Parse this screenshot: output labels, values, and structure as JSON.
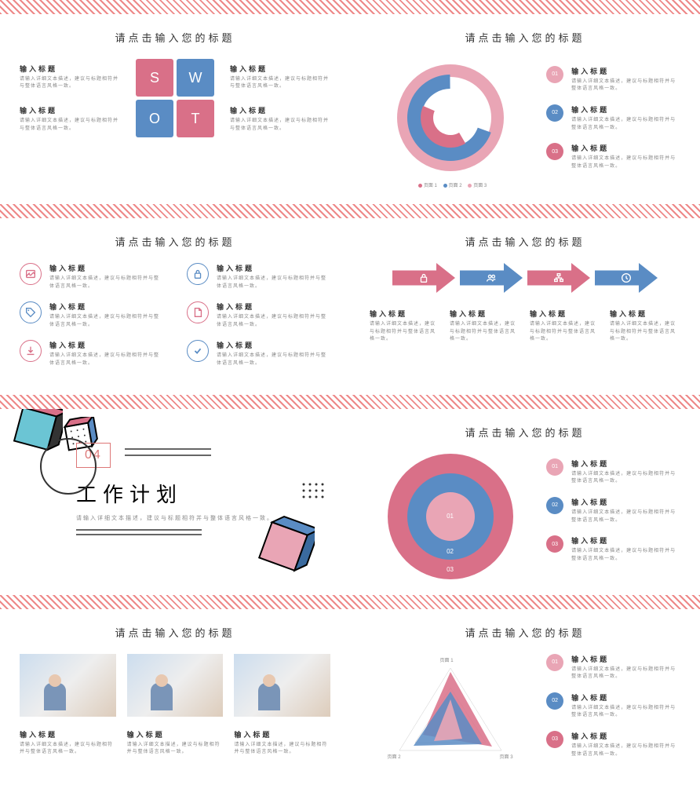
{
  "colors": {
    "pink": "#d97088",
    "blue": "#5a8cc4",
    "lightpink": "#e9a5b5",
    "lightblue": "#8fb3d9",
    "darkpink": "#c45a75"
  },
  "common": {
    "slideTitle": "请点击输入您的标题",
    "subTitle": "输入标题",
    "subDesc": "请输入详细文本描述，建议与标题相符并与整体语言风格一致。",
    "subDescShort": "请输入详细文本描述，建议与标题相符并与整体语言风格一致。"
  },
  "swot": {
    "cells": [
      {
        "letter": "S",
        "color": "#d97088"
      },
      {
        "letter": "W",
        "color": "#5a8cc4"
      },
      {
        "letter": "O",
        "color": "#5a8cc4"
      },
      {
        "letter": "T",
        "color": "#d97088"
      }
    ]
  },
  "donut": {
    "legend": [
      "页面 1",
      "页面 2",
      "页面 3"
    ],
    "rings": [
      {
        "color": "#e9a5b5",
        "start": 0,
        "end": 360,
        "r": 68,
        "w": 16
      },
      {
        "color": "#5a8cc4",
        "start": 140,
        "end": 380,
        "r": 52,
        "w": 20
      },
      {
        "color": "#d97088",
        "start": 60,
        "end": 200,
        "r": 34,
        "w": 18
      }
    ],
    "sideItems": [
      {
        "num": "01",
        "color": "#e9a5b5"
      },
      {
        "num": "02",
        "color": "#5a8cc4"
      },
      {
        "num": "03",
        "color": "#d97088"
      }
    ]
  },
  "iconList": {
    "left": [
      {
        "color": "#d97088",
        "icon": "image"
      },
      {
        "color": "#5a8cc4",
        "icon": "tag"
      },
      {
        "color": "#d97088",
        "icon": "download"
      }
    ],
    "right": [
      {
        "color": "#5a8cc4",
        "icon": "lock"
      },
      {
        "color": "#d97088",
        "icon": "file"
      },
      {
        "color": "#5a8cc4",
        "icon": "check"
      }
    ]
  },
  "arrows": {
    "items": [
      {
        "color": "#d97088",
        "icon": "lock"
      },
      {
        "color": "#5a8cc4",
        "icon": "users"
      },
      {
        "color": "#d97088",
        "icon": "org"
      },
      {
        "color": "#5a8cc4",
        "icon": "clock"
      }
    ]
  },
  "section": {
    "num": "04",
    "title": "工作计划",
    "desc": "请输入详细文本描述，建议与标题相符并与整体语言风格一致。"
  },
  "concentric": {
    "rings": [
      {
        "size": 160,
        "color": "#d97088",
        "label": "03"
      },
      {
        "size": 110,
        "color": "#5a8cc4",
        "label": "02"
      },
      {
        "size": 62,
        "color": "#e9a5b5",
        "label": "01"
      }
    ],
    "sideItems": [
      {
        "num": "01",
        "color": "#e9a5b5"
      },
      {
        "num": "02",
        "color": "#5a8cc4"
      },
      {
        "num": "03",
        "color": "#d97088"
      }
    ]
  },
  "photos": {
    "count": 3
  },
  "radar": {
    "labels": [
      "页面 1",
      "页面 2",
      "页面 3"
    ],
    "sideItems": [
      {
        "num": "01",
        "color": "#e9a5b5"
      },
      {
        "num": "02",
        "color": "#5a8cc4"
      },
      {
        "num": "03",
        "color": "#d97088"
      }
    ]
  }
}
